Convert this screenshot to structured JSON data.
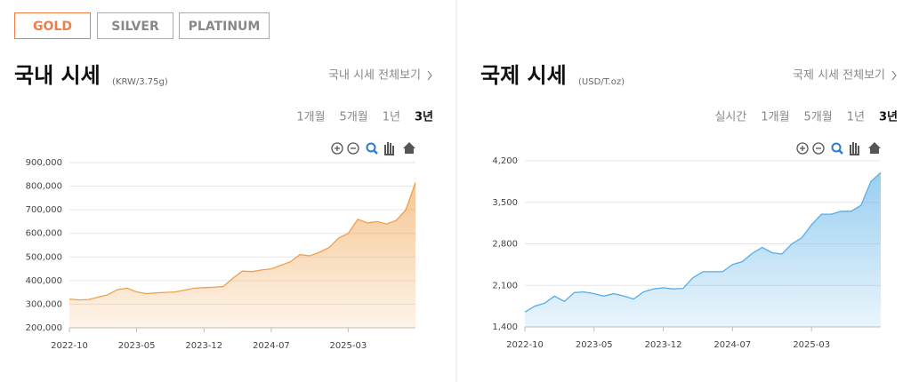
{
  "tabs": [
    "GOLD",
    "SILVER",
    "PLATINUM"
  ],
  "chart_data": [
    {
      "type": "area",
      "title": "국내 시세",
      "subtitle": "(KRW/3.75g)",
      "link": "국내 시세 전체보기",
      "periods": [
        "1개월",
        "5개월",
        "1년",
        "3년"
      ],
      "x": [
        "2022-10",
        "2022-11",
        "2022-12",
        "2023-01",
        "2023-02",
        "2023-03",
        "2023-04",
        "2023-05",
        "2023-06",
        "2023-07",
        "2023-08",
        "2023-09",
        "2023-10",
        "2023-11",
        "2023-12",
        "2024-01",
        "2024-02",
        "2024-03",
        "2024-04",
        "2024-05",
        "2024-06",
        "2024-07",
        "2024-08",
        "2024-09",
        "2024-10",
        "2024-11",
        "2024-12",
        "2025-01",
        "2025-02",
        "2025-03",
        "2025-04",
        "2025-05",
        "2025-06",
        "2025-07",
        "2025-08",
        "2025-09",
        "2025-10"
      ],
      "xticks": [
        "2022-10",
        "2023-05",
        "2023-12",
        "2024-07",
        "2025-03"
      ],
      "series": [
        {
          "color": "#f0a04b",
          "values": [
            322000,
            318000,
            320000,
            330000,
            340000,
            362000,
            368000,
            352000,
            345000,
            348000,
            350000,
            352000,
            360000,
            368000,
            370000,
            372000,
            375000,
            410000,
            440000,
            438000,
            445000,
            450000,
            465000,
            480000,
            510000,
            505000,
            520000,
            540000,
            580000,
            600000,
            660000,
            645000,
            650000,
            640000,
            655000,
            700000,
            815000
          ]
        }
      ],
      "ylim": [
        200000,
        900000
      ],
      "yticks": [
        {
          "value": 200000,
          "label": "200,000"
        },
        {
          "value": 300000,
          "label": "300,000"
        },
        {
          "value": 400000,
          "label": "400,000"
        },
        {
          "value": 500000,
          "label": "500,000"
        },
        {
          "value": 600000,
          "label": "600,000"
        },
        {
          "value": 700000,
          "label": "700,000"
        },
        {
          "value": 800000,
          "label": "800,000"
        },
        {
          "value": 900000,
          "label": "900,000"
        }
      ],
      "grid": true
    },
    {
      "type": "area",
      "title": "국제 시세",
      "subtitle": "(USD/T.oz)",
      "link": "국제 시세 전체보기",
      "periods": [
        "실시간",
        "1개월",
        "5개월",
        "1년",
        "3년"
      ],
      "x": [
        "2022-10",
        "2022-11",
        "2022-12",
        "2023-01",
        "2023-02",
        "2023-03",
        "2023-04",
        "2023-05",
        "2023-06",
        "2023-07",
        "2023-08",
        "2023-09",
        "2023-10",
        "2023-11",
        "2023-12",
        "2024-01",
        "2024-02",
        "2024-03",
        "2024-04",
        "2024-05",
        "2024-06",
        "2024-07",
        "2024-08",
        "2024-09",
        "2024-10",
        "2024-11",
        "2024-12",
        "2025-01",
        "2025-02",
        "2025-03",
        "2025-04",
        "2025-05",
        "2025-06",
        "2025-07",
        "2025-08",
        "2025-09",
        "2025-10"
      ],
      "xticks": [
        "2022-10",
        "2023-05",
        "2023-12",
        "2024-07",
        "2025-03"
      ],
      "series": [
        {
          "color": "#55aee8",
          "values": [
            1650,
            1750,
            1800,
            1920,
            1830,
            1980,
            1990,
            1960,
            1920,
            1960,
            1920,
            1870,
            1990,
            2040,
            2060,
            2040,
            2050,
            2230,
            2330,
            2330,
            2330,
            2450,
            2500,
            2640,
            2740,
            2650,
            2630,
            2800,
            2900,
            3120,
            3300,
            3300,
            3350,
            3350,
            3450,
            3850,
            4000
          ]
        }
      ],
      "ylim": [
        1400,
        4200
      ],
      "yticks": [
        {
          "value": 1400,
          "label": "1,400"
        },
        {
          "value": 2100,
          "label": "2,100"
        },
        {
          "value": 2800,
          "label": "2,800"
        },
        {
          "value": 3500,
          "label": "3,500"
        },
        {
          "value": 4200,
          "label": "4,200"
        }
      ],
      "grid": true
    }
  ]
}
